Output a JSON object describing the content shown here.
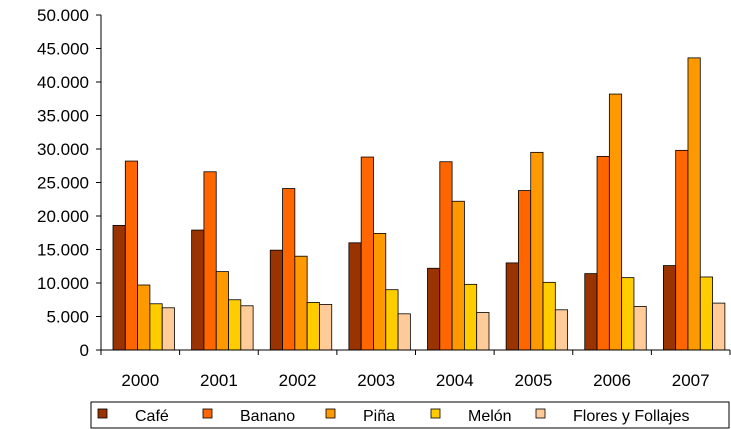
{
  "chart_data": {
    "type": "bar",
    "title": "",
    "xlabel": "",
    "ylabel": "",
    "categories": [
      "2000",
      "2001",
      "2002",
      "2003",
      "2004",
      "2005",
      "2006",
      "2007"
    ],
    "ylim": [
      0,
      50000
    ],
    "yticks": [
      0,
      5000,
      10000,
      15000,
      20000,
      25000,
      30000,
      35000,
      40000,
      45000,
      50000
    ],
    "ytick_labels": [
      "0",
      "5.000",
      "10.000",
      "15.000",
      "20.000",
      "25.000",
      "30.000",
      "35.000",
      "40.000",
      "45.000",
      "50.000"
    ],
    "grid": false,
    "legend_position": "bottom",
    "series": [
      {
        "name": "Café",
        "color": "#993300",
        "values": [
          18600,
          17900,
          14900,
          16000,
          12200,
          13000,
          11400,
          12600
        ]
      },
      {
        "name": "Banano",
        "color": "#ff6600",
        "values": [
          28200,
          26600,
          24100,
          28800,
          28100,
          23800,
          28900,
          29800
        ]
      },
      {
        "name": "Piña",
        "color": "#ff9900",
        "values": [
          9700,
          11700,
          14000,
          17400,
          22200,
          29500,
          38200,
          43600
        ]
      },
      {
        "name": "Melón",
        "color": "#ffcc00",
        "values": [
          6900,
          7500,
          7100,
          9000,
          9800,
          10100,
          10800,
          10900
        ]
      },
      {
        "name": "Flores y Follajes",
        "color": "#ffcc99",
        "values": [
          6300,
          6600,
          6800,
          5400,
          5600,
          6000,
          6500,
          7000
        ]
      }
    ]
  }
}
